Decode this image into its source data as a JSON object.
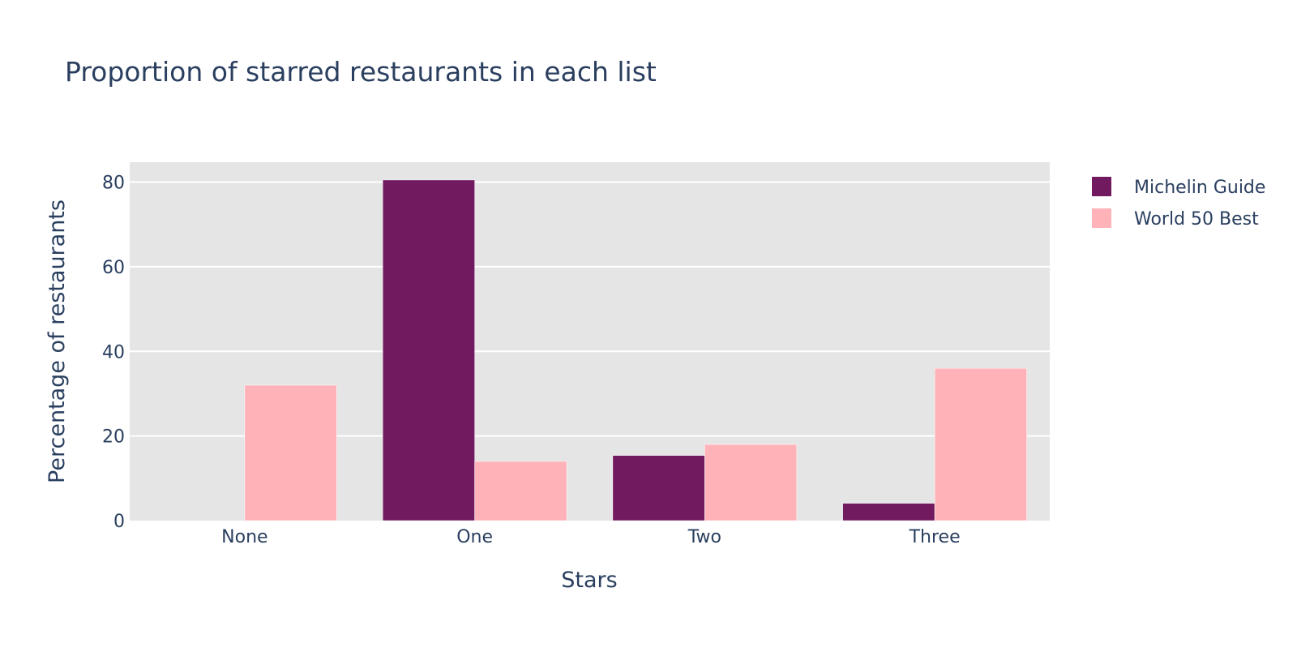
{
  "chart_data": {
    "type": "bar",
    "title": "Proportion of starred restaurants in each list",
    "xlabel": "Stars",
    "ylabel": "Percentage of restaurants",
    "categories": [
      "None",
      "One",
      "Two",
      "Three"
    ],
    "series": [
      {
        "name": "Michelin Guide",
        "color": "#721a5f",
        "values": [
          0,
          80.5,
          15.4,
          4.1
        ]
      },
      {
        "name": "World 50 Best",
        "color": "#ffb2b7",
        "values": [
          32,
          14,
          18,
          36
        ]
      }
    ],
    "ylim": [
      0,
      84.7
    ],
    "yticks": [
      0,
      20,
      40,
      60,
      80
    ],
    "grid": true,
    "legend_position": "top-right",
    "colors": {
      "plot_background": "#e5e5e5",
      "grid": "#ffffff",
      "text": "#2a3f5f"
    }
  }
}
